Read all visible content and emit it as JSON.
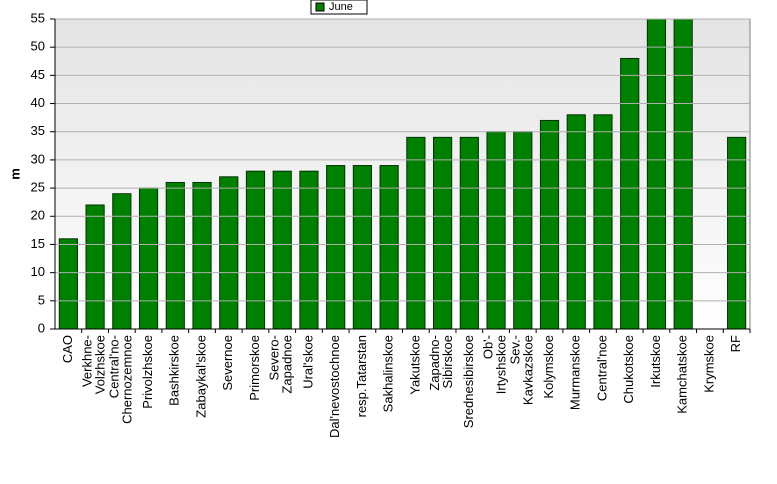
{
  "chart_data": {
    "type": "bar",
    "y_label": "m",
    "legend": "June",
    "legend_position": "top",
    "color": "#008000",
    "categories": [
      "CAO",
      "Verkhne-\nVolzhskoe",
      "Central'no-\nChernozemnoe",
      "Privolzhskoe",
      "Bashkirskoe",
      "Zabaykal'skoe",
      "Severnoe",
      "Primorskoe",
      "Severo-\nZapadnoe",
      "Ural'skoe",
      "Dal'nevostochnoe",
      "resp.Tatarstan",
      "Sakhalinskoe",
      "Yakutskoe",
      "Zapadno-\nSibirskoe",
      "Srednesibirskoe",
      "Ob'-\nIrtyshskoe",
      "Sev.-\nKavkazskoe",
      "Kolymskoe",
      "Murmanskoe",
      "Central'noe",
      "Chukotskoe",
      "Irkutskoe",
      "Kamchatskoe",
      "Krymskoe",
      "RF"
    ],
    "values": [
      16,
      22,
      24,
      25,
      26,
      26,
      27,
      28,
      28,
      28,
      29,
      29,
      29,
      34,
      34,
      34,
      35,
      35,
      37,
      38,
      38,
      48,
      55,
      55,
      null,
      34
    ],
    "ylim": [
      0,
      55
    ],
    "yticks": [
      0,
      5,
      10,
      15,
      20,
      25,
      30,
      35,
      40,
      45,
      50,
      55
    ],
    "grid": true
  }
}
